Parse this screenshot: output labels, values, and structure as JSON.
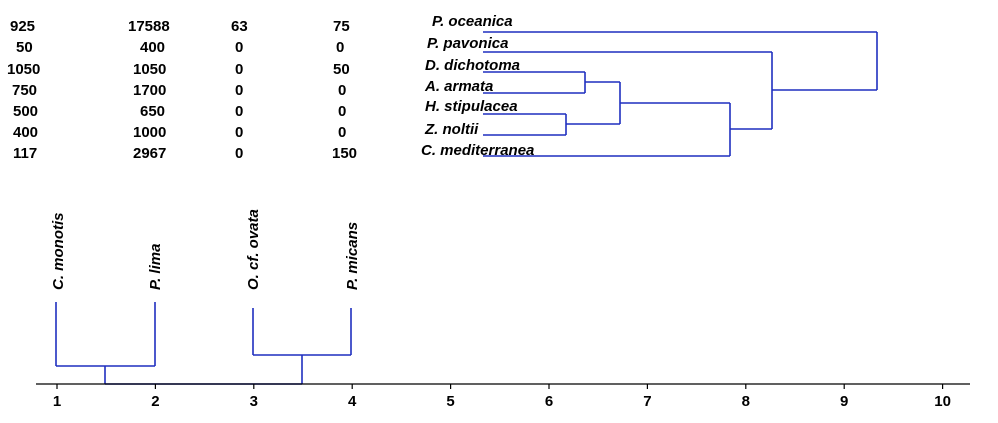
{
  "table": {
    "rows": [
      [
        "925",
        "17588",
        "63",
        "75"
      ],
      [
        "50",
        "400",
        "0",
        "0"
      ],
      [
        "1050",
        "1050",
        "0",
        "50"
      ],
      [
        "750",
        "1700",
        "0",
        "0"
      ],
      [
        "500",
        "650",
        "0",
        "0"
      ],
      [
        "400",
        "1000",
        "0",
        "0"
      ],
      [
        "117",
        "2967",
        "0",
        "150"
      ]
    ]
  },
  "row_species": [
    "P. oceanica",
    "P. pavonica",
    "D. dichotoma",
    "A. armata",
    "H. stipulacea",
    "Z. noltii",
    "C. mediterranea"
  ],
  "column_species": [
    "C. monotis",
    "P. lima",
    "O. cf. ovata",
    "P. micans"
  ],
  "axis_ticks": [
    "1",
    "2",
    "3",
    "4",
    "5",
    "6",
    "7",
    "8",
    "9",
    "10"
  ],
  "colors": {
    "tree": "#1f2fbf",
    "axis": "#000000",
    "text": "#000000"
  }
}
